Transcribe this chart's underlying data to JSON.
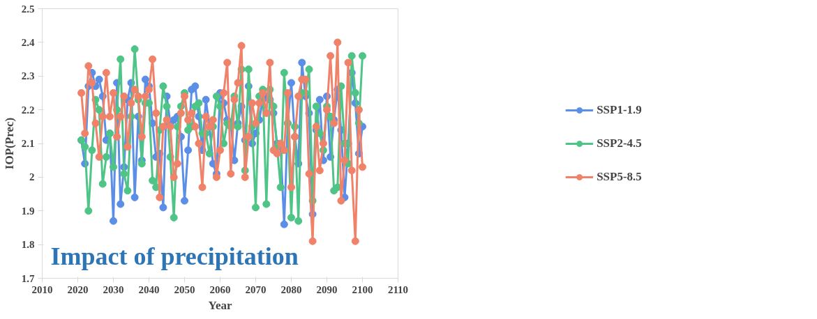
{
  "chart_data": {
    "type": "line",
    "xlabel": "Year",
    "ylabel": "IOP(Prec)",
    "x": [
      2021,
      2022,
      2023,
      2024,
      2025,
      2026,
      2027,
      2028,
      2029,
      2030,
      2031,
      2032,
      2033,
      2034,
      2035,
      2036,
      2037,
      2038,
      2039,
      2040,
      2041,
      2042,
      2043,
      2044,
      2045,
      2046,
      2047,
      2048,
      2049,
      2050,
      2051,
      2052,
      2053,
      2054,
      2055,
      2056,
      2057,
      2058,
      2059,
      2060,
      2061,
      2062,
      2063,
      2064,
      2065,
      2066,
      2067,
      2068,
      2069,
      2070,
      2071,
      2072,
      2073,
      2074,
      2075,
      2076,
      2077,
      2078,
      2079,
      2080,
      2081,
      2082,
      2083,
      2084,
      2085,
      2086,
      2087,
      2088,
      2089,
      2090,
      2091,
      2092,
      2093,
      2094,
      2095,
      2096,
      2097,
      2098,
      2099,
      2100
    ],
    "series": [
      {
        "name": "SSP1-1.9",
        "color": "#5b8ee6",
        "values": [
          2.11,
          2.04,
          2.27,
          2.31,
          2.27,
          2.29,
          2.24,
          2.11,
          2.13,
          1.87,
          2.28,
          1.92,
          2.03,
          2.23,
          2.28,
          1.94,
          2.18,
          2.05,
          2.29,
          2.27,
          2.16,
          2.06,
          2.07,
          1.91,
          2.24,
          2.16,
          2.17,
          2.18,
          2.12,
          1.93,
          2.08,
          2.26,
          2.27,
          2.18,
          2.08,
          2.23,
          2.15,
          2.04,
          2.01,
          2.25,
          2.22,
          2.17,
          2.16,
          2.05,
          2.16,
          2.21,
          2.11,
          2.27,
          2.1,
          2.13,
          2.17,
          2.23,
          2.24,
          2.23,
          2.19,
          2.1,
          2.09,
          1.86,
          2.16,
          2.28,
          2.12,
          2.04,
          2.34,
          2.24,
          2.19,
          1.89,
          2.14,
          2.23,
          2.05,
          2.24,
          2.06,
          2.17,
          2.26,
          2.14,
          1.94,
          2.1,
          2.31,
          2.22,
          2.07,
          2.15
        ]
      },
      {
        "name": "SSP2-4.5",
        "color": "#4fc487",
        "values": [
          2.11,
          2.09,
          1.9,
          2.08,
          2.23,
          2.2,
          1.98,
          2.06,
          2.13,
          2.03,
          2.2,
          2.35,
          2.01,
          1.96,
          2.18,
          2.38,
          2.23,
          2.04,
          2.22,
          2.22,
          1.99,
          1.97,
          2.14,
          2.27,
          2.21,
          2.06,
          1.88,
          2.15,
          2.21,
          2.25,
          2.14,
          2.15,
          2.21,
          2.22,
          2.13,
          2.13,
          2.07,
          2.15,
          2.24,
          2.21,
          2.1,
          2.16,
          2.15,
          2.24,
          2.15,
          2.32,
          2.02,
          2.32,
          2.15,
          1.91,
          2.24,
          2.26,
          1.92,
          2.26,
          2.21,
          2.09,
          1.97,
          2.31,
          2.16,
          1.88,
          2.15,
          1.87,
          2.25,
          2.25,
          2.32,
          1.93,
          2.21,
          2.13,
          2.08,
          2.21,
          2.18,
          1.96,
          1.97,
          2.27,
          2.1,
          2.04,
          2.36,
          2.25,
          2.16,
          2.36
        ]
      },
      {
        "name": "SSP5-8.5",
        "color": "#f0826a",
        "values": [
          2.25,
          2.13,
          2.33,
          2.28,
          2.16,
          2.06,
          2.18,
          2.31,
          2.18,
          2.25,
          2.12,
          2.18,
          2.24,
          2.09,
          2.22,
          2.26,
          2.24,
          2.12,
          2.24,
          2.26,
          2.35,
          2.19,
          1.94,
          2.15,
          2.17,
          2.15,
          2.0,
          2.04,
          2.19,
          2.24,
          2.17,
          2.19,
          2.15,
          2.1,
          1.97,
          2.18,
          2.15,
          2.17,
          2.0,
          2.08,
          2.25,
          2.34,
          2.01,
          2.23,
          2.28,
          2.39,
          2.0,
          2.12,
          2.22,
          2.16,
          2.22,
          2.25,
          2.19,
          2.34,
          2.08,
          2.07,
          2.1,
          2.08,
          2.25,
          1.97,
          2.12,
          2.24,
          2.29,
          2.29,
          2.01,
          1.81,
          2.15,
          2.02,
          2.1,
          2.2,
          2.36,
          2.16,
          2.4,
          1.93,
          2.05,
          2.34,
          2.02,
          1.81,
          2.2,
          2.03
        ]
      }
    ],
    "xlim": [
      2010,
      2110
    ],
    "xticks": [
      2010,
      2020,
      2030,
      2040,
      2050,
      2060,
      2070,
      2080,
      2090,
      2100,
      2110
    ],
    "ylim": [
      1.7,
      2.5
    ],
    "yticks": [
      1.7,
      1.8,
      1.9,
      2,
      2.1,
      2.2,
      2.3,
      2.4,
      2.5
    ],
    "annotations": [
      "Impact of precipitation"
    ],
    "grid": false,
    "legend": "right",
    "marker": "circle",
    "line_style": "solid"
  }
}
